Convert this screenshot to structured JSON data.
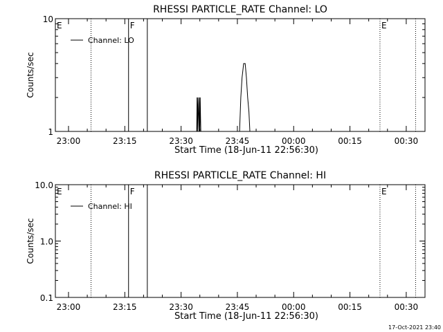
{
  "footer": {
    "timestamp": "17-Oct-2021 23:40"
  },
  "colors": {
    "background": "#ffffff",
    "foreground": "#000000"
  },
  "chart_data": [
    {
      "type": "line",
      "title": "RHESSI PARTICLE_RATE Channel: LO",
      "xlabel": "Start Time (18-Jun-11 22:56:30)",
      "ylabel": "Counts/sec",
      "y_scale": "log",
      "ylim": [
        1,
        10
      ],
      "y_ticks": [
        1,
        10
      ],
      "y_tick_labels": [
        "1",
        "10"
      ],
      "xlim": [
        "22:56:30",
        "00:35:00"
      ],
      "x_ticks": [
        "23:00",
        "23:15",
        "23:30",
        "23:45",
        "00:00",
        "00:15",
        "00:30"
      ],
      "legend": {
        "entries": [
          "Channel: LO"
        ],
        "placement": "top-left"
      },
      "grid": false,
      "series": [
        {
          "name": "Channel: LO",
          "x": [
            "23:34:10",
            "23:34:15",
            "23:34:22",
            "23:34:30",
            "23:34:45",
            "23:34:52",
            "23:35:00",
            "23:35:05",
            "23:35:15",
            "23:45:35",
            "23:45:55",
            "23:46:15",
            "23:46:40",
            "23:47:05",
            "23:47:25",
            "23:47:45",
            "23:48:05",
            "23:48:20",
            "23:48:35"
          ],
          "values": [
            1,
            2,
            1,
            2,
            1,
            2,
            1,
            2,
            1,
            1,
            2,
            3,
            4,
            4,
            3,
            2,
            1.5,
            1,
            1
          ]
        }
      ],
      "markers": [
        {
          "time": "22:56:30",
          "style": "dotted",
          "label": "E"
        },
        {
          "time": "23:06:00",
          "style": "dotted",
          "label": ""
        },
        {
          "time": "23:16:00",
          "style": "solid",
          "label": "F"
        },
        {
          "time": "23:21:00",
          "style": "solid",
          "label": ""
        },
        {
          "time": "00:23:00",
          "style": "dotted",
          "label": "E"
        },
        {
          "time": "00:32:30",
          "style": "dotted",
          "label": ""
        }
      ]
    },
    {
      "type": "line",
      "title": "RHESSI PARTICLE_RATE Channel: HI",
      "xlabel": "Start Time (18-Jun-11 22:56:30)",
      "ylabel": "Counts/sec",
      "y_scale": "log",
      "ylim": [
        0.1,
        10
      ],
      "y_ticks": [
        0.1,
        1,
        10
      ],
      "y_tick_labels": [
        "0.1",
        "1.0",
        "10.0"
      ],
      "xlim": [
        "22:56:30",
        "00:35:00"
      ],
      "x_ticks": [
        "23:00",
        "23:15",
        "23:30",
        "23:45",
        "00:00",
        "00:15",
        "00:30"
      ],
      "legend": {
        "entries": [
          "Channel: HI"
        ],
        "placement": "top-left"
      },
      "grid": false,
      "series": [
        {
          "name": "Channel: HI",
          "x": [],
          "values": []
        }
      ],
      "markers": [
        {
          "time": "22:56:30",
          "style": "dotted",
          "label": "E"
        },
        {
          "time": "23:06:00",
          "style": "dotted",
          "label": ""
        },
        {
          "time": "23:16:00",
          "style": "solid",
          "label": "F"
        },
        {
          "time": "23:21:00",
          "style": "solid",
          "label": ""
        },
        {
          "time": "00:23:00",
          "style": "dotted",
          "label": "E"
        },
        {
          "time": "00:32:30",
          "style": "dotted",
          "label": ""
        }
      ]
    }
  ]
}
